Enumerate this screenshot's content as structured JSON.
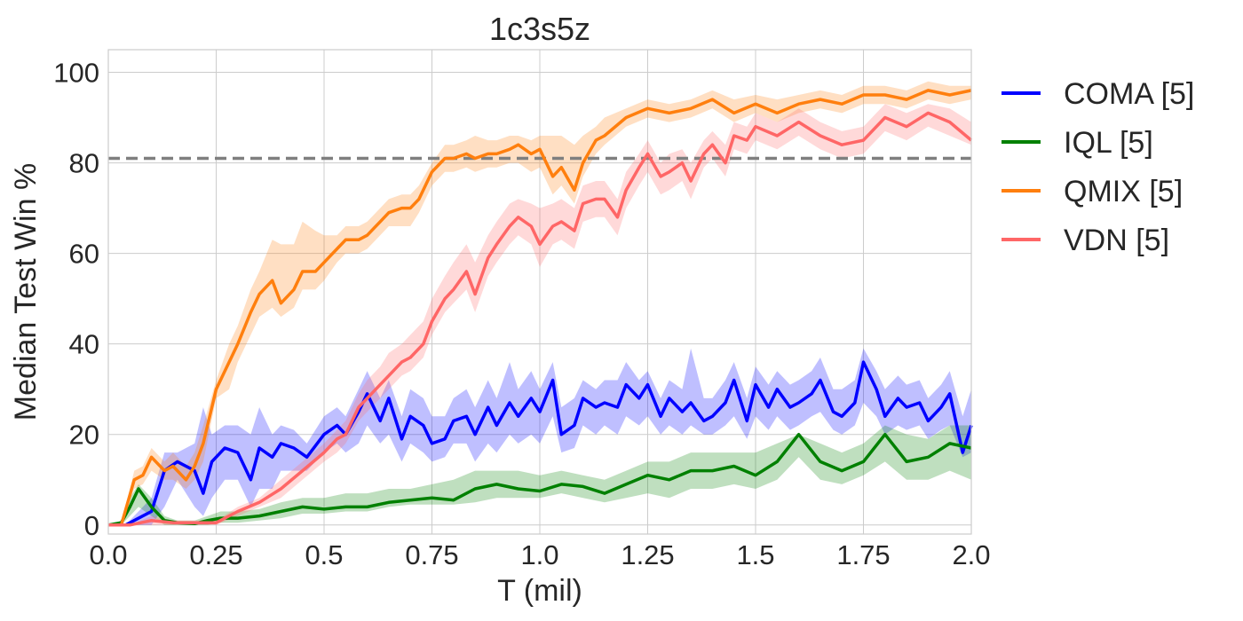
{
  "chart_data": {
    "type": "line",
    "title": "1c3s5z",
    "xlabel": "T (mil)",
    "ylabel": "Median Test Win %",
    "xlim": [
      0,
      2.0
    ],
    "ylim": [
      -2,
      105
    ],
    "xticks": [
      0.0,
      0.25,
      0.5,
      0.75,
      1.0,
      1.25,
      1.5,
      1.75,
      2.0
    ],
    "xtick_labels": [
      "0.0",
      "0.25",
      "0.5",
      "0.75",
      "1.0",
      "1.25",
      "1.5",
      "1.75",
      "2.0"
    ],
    "yticks": [
      0,
      20,
      40,
      60,
      80,
      100
    ],
    "ytick_labels": [
      "0",
      "20",
      "40",
      "60",
      "80",
      "100"
    ],
    "grid": true,
    "legend_position": "outside-right",
    "reference_line": {
      "y": 81,
      "color": "#7f7f7f",
      "style": "dashed"
    },
    "series": [
      {
        "name": "COMA [5]",
        "color": "#0000ff",
        "x": [
          0,
          0.04,
          0.08,
          0.1,
          0.13,
          0.16,
          0.2,
          0.22,
          0.24,
          0.27,
          0.3,
          0.33,
          0.35,
          0.38,
          0.4,
          0.43,
          0.46,
          0.5,
          0.53,
          0.55,
          0.58,
          0.6,
          0.63,
          0.65,
          0.68,
          0.7,
          0.73,
          0.75,
          0.78,
          0.8,
          0.83,
          0.85,
          0.88,
          0.9,
          0.93,
          0.95,
          0.98,
          1.0,
          1.03,
          1.05,
          1.08,
          1.1,
          1.13,
          1.15,
          1.18,
          1.2,
          1.23,
          1.25,
          1.28,
          1.3,
          1.33,
          1.35,
          1.38,
          1.4,
          1.43,
          1.45,
          1.48,
          1.5,
          1.53,
          1.55,
          1.58,
          1.6,
          1.63,
          1.65,
          1.68,
          1.7,
          1.73,
          1.75,
          1.78,
          1.8,
          1.83,
          1.85,
          1.88,
          1.9,
          1.93,
          1.95,
          1.98,
          2.0
        ],
        "y": [
          0,
          0,
          2,
          3,
          12,
          14,
          12,
          7,
          14,
          17,
          16,
          10,
          17,
          15,
          18,
          17,
          15,
          20,
          22,
          20,
          25,
          29,
          23,
          28,
          19,
          24,
          22,
          18,
          19,
          23,
          24,
          20,
          26,
          22,
          27,
          24,
          28,
          25,
          32,
          20,
          22,
          28,
          26,
          27,
          26,
          31,
          28,
          31,
          24,
          28,
          25,
          27,
          23,
          24,
          27,
          32,
          23,
          31,
          26,
          30,
          26,
          27,
          29,
          32,
          25,
          24,
          27,
          36,
          30,
          24,
          28,
          26,
          27,
          23,
          26,
          29,
          16,
          22
        ],
        "lower": [
          0,
          0,
          0,
          0,
          4,
          10,
          4,
          2,
          6,
          10,
          10,
          4,
          8,
          8,
          12,
          12,
          12,
          16,
          18,
          16,
          18,
          22,
          18,
          20,
          14,
          18,
          16,
          14,
          15,
          18,
          18,
          14,
          18,
          16,
          20,
          18,
          20,
          18,
          24,
          16,
          17,
          22,
          20,
          22,
          20,
          24,
          22,
          24,
          20,
          22,
          20,
          22,
          20,
          20,
          22,
          24,
          19,
          24,
          21,
          24,
          21,
          22,
          24,
          25,
          21,
          20,
          22,
          27,
          24,
          20,
          22,
          21,
          22,
          19,
          21,
          22,
          15,
          16
        ],
        "upper": [
          0,
          0,
          4,
          6,
          16,
          16,
          18,
          26,
          20,
          22,
          22,
          20,
          26,
          20,
          22,
          21,
          18,
          24,
          26,
          24,
          30,
          34,
          28,
          32,
          24,
          30,
          28,
          24,
          24,
          28,
          30,
          26,
          32,
          28,
          36,
          30,
          34,
          30,
          36,
          26,
          28,
          32,
          30,
          32,
          32,
          36,
          32,
          34,
          28,
          32,
          30,
          39,
          28,
          28,
          32,
          36,
          28,
          35,
          31,
          34,
          31,
          32,
          34,
          37,
          30,
          30,
          32,
          39,
          34,
          30,
          33,
          31,
          32,
          28,
          31,
          34,
          24,
          30
        ]
      },
      {
        "name": "IQL [5]",
        "color": "#008000",
        "x": [
          0,
          0.03,
          0.05,
          0.07,
          0.1,
          0.13,
          0.16,
          0.2,
          0.23,
          0.26,
          0.3,
          0.35,
          0.4,
          0.45,
          0.5,
          0.55,
          0.6,
          0.65,
          0.7,
          0.75,
          0.8,
          0.85,
          0.9,
          0.95,
          1.0,
          1.05,
          1.1,
          1.15,
          1.2,
          1.25,
          1.3,
          1.35,
          1.4,
          1.45,
          1.5,
          1.55,
          1.6,
          1.65,
          1.7,
          1.75,
          1.8,
          1.85,
          1.9,
          1.95,
          2.0
        ],
        "y": [
          0,
          0.5,
          4,
          8,
          4,
          1,
          0.5,
          0.3,
          1,
          1.5,
          1.5,
          2,
          3,
          4,
          3.5,
          4,
          4,
          5,
          5.5,
          6,
          5.5,
          8,
          9,
          8,
          7.5,
          9,
          8.5,
          7,
          9,
          11,
          10,
          12,
          12,
          13,
          11,
          14,
          20,
          14,
          12,
          14,
          20,
          14,
          15,
          18,
          17
        ],
        "lower": [
          0,
          0,
          2,
          4,
          2,
          0,
          0,
          0,
          0,
          0.5,
          0.5,
          1,
          1.5,
          2.5,
          2.5,
          3,
          3,
          4,
          4.5,
          4.5,
          4.5,
          5,
          6,
          6,
          6,
          7,
          6,
          5,
          6,
          7,
          6,
          8,
          8,
          9,
          8,
          10,
          15,
          10,
          9,
          11,
          14,
          10,
          10,
          12,
          10
        ],
        "upper": [
          0,
          1,
          6,
          9,
          6,
          2,
          1,
          1,
          2,
          3,
          3,
          3.5,
          5,
          6,
          6,
          7,
          7,
          8,
          8,
          9,
          10,
          12,
          12,
          12,
          11,
          12,
          11,
          10,
          12,
          14,
          14,
          16,
          16,
          16,
          16,
          18,
          20,
          18,
          16,
          18,
          22,
          20,
          19,
          22,
          22
        ]
      },
      {
        "name": "QMIX [5]",
        "color": "#ff7f0e",
        "x": [
          0,
          0.03,
          0.06,
          0.08,
          0.1,
          0.13,
          0.15,
          0.18,
          0.2,
          0.22,
          0.25,
          0.28,
          0.3,
          0.33,
          0.35,
          0.38,
          0.4,
          0.43,
          0.45,
          0.48,
          0.5,
          0.53,
          0.55,
          0.58,
          0.6,
          0.63,
          0.65,
          0.68,
          0.7,
          0.72,
          0.75,
          0.78,
          0.8,
          0.83,
          0.85,
          0.88,
          0.9,
          0.93,
          0.95,
          0.98,
          1.0,
          1.03,
          1.05,
          1.08,
          1.1,
          1.13,
          1.15,
          1.2,
          1.25,
          1.3,
          1.35,
          1.4,
          1.45,
          1.5,
          1.55,
          1.6,
          1.65,
          1.7,
          1.75,
          1.8,
          1.85,
          1.9,
          1.95,
          2.0
        ],
        "y": [
          0,
          0,
          10,
          11,
          15,
          12,
          13,
          10,
          13,
          18,
          30,
          36,
          40,
          47,
          51,
          54,
          49,
          52,
          56,
          56,
          58,
          61,
          63,
          63,
          64,
          67,
          69,
          70,
          70,
          72,
          78,
          81,
          81,
          82,
          81,
          82,
          82,
          83,
          84,
          82,
          83,
          77,
          79,
          74,
          80,
          85,
          86,
          90,
          92,
          91,
          92,
          94,
          91,
          93,
          91,
          93,
          94,
          93,
          95,
          95,
          94,
          96,
          95,
          96
        ],
        "lower": [
          0,
          0,
          8,
          9,
          12,
          10,
          10,
          8,
          10,
          14,
          28,
          30,
          36,
          42,
          46,
          48,
          46,
          48,
          52,
          52,
          54,
          58,
          60,
          60,
          61,
          64,
          66,
          66,
          66,
          69,
          75,
          78,
          78,
          79,
          78,
          79,
          79,
          80,
          80,
          78,
          79,
          73,
          75,
          71,
          77,
          82,
          84,
          88,
          90,
          89,
          90,
          92,
          89,
          91,
          89,
          91,
          92,
          91,
          93,
          93,
          92,
          94,
          93,
          94
        ],
        "upper": [
          0,
          0,
          12,
          13,
          17,
          14,
          16,
          13,
          16,
          22,
          32,
          40,
          44,
          52,
          56,
          63,
          62,
          62,
          67,
          65,
          64,
          64,
          66,
          66,
          67,
          70,
          72,
          73,
          73,
          75,
          80,
          84,
          84,
          85,
          86,
          85,
          85,
          86,
          86,
          85,
          86,
          86,
          86,
          84,
          86,
          88,
          90,
          92,
          94,
          93,
          94,
          96,
          94,
          95,
          94,
          95,
          96,
          95,
          97,
          97,
          96,
          98,
          97,
          97
        ]
      },
      {
        "name": "VDN [5]",
        "color": "#ff6666",
        "x": [
          0,
          0.05,
          0.1,
          0.15,
          0.2,
          0.25,
          0.3,
          0.35,
          0.4,
          0.45,
          0.5,
          0.53,
          0.55,
          0.58,
          0.6,
          0.63,
          0.65,
          0.68,
          0.7,
          0.73,
          0.75,
          0.78,
          0.8,
          0.83,
          0.85,
          0.88,
          0.9,
          0.93,
          0.95,
          0.98,
          1.0,
          1.03,
          1.05,
          1.08,
          1.1,
          1.13,
          1.15,
          1.18,
          1.2,
          1.23,
          1.25,
          1.28,
          1.3,
          1.33,
          1.35,
          1.38,
          1.4,
          1.43,
          1.45,
          1.48,
          1.5,
          1.55,
          1.6,
          1.65,
          1.7,
          1.75,
          1.8,
          1.85,
          1.9,
          1.95,
          2.0
        ],
        "y": [
          0,
          0,
          1,
          0.5,
          0.5,
          0.5,
          3,
          5,
          8,
          12,
          16,
          19,
          20,
          26,
          28,
          31,
          33,
          36,
          37,
          40,
          45,
          50,
          52,
          56,
          51,
          59,
          62,
          66,
          68,
          66,
          62,
          66,
          67,
          65,
          71,
          72,
          72,
          68,
          74,
          79,
          82,
          77,
          78,
          80,
          76,
          82,
          84,
          80,
          86,
          85,
          88,
          86,
          89,
          86,
          84,
          85,
          90,
          88,
          91,
          89,
          85
        ],
        "lower": [
          0,
          0,
          0,
          0,
          0,
          0,
          2,
          4,
          6,
          10,
          14,
          16,
          18,
          23,
          25,
          28,
          30,
          33,
          34,
          37,
          42,
          47,
          49,
          52,
          47,
          55,
          58,
          62,
          64,
          62,
          57,
          62,
          63,
          61,
          67,
          68,
          68,
          64,
          70,
          75,
          78,
          73,
          74,
          76,
          72,
          79,
          81,
          77,
          83,
          82,
          85,
          83,
          86,
          83,
          81,
          82,
          87,
          85,
          88,
          86,
          84
        ],
        "upper": [
          0,
          0,
          2,
          1,
          1,
          1,
          4,
          6,
          10,
          14,
          18,
          21,
          23,
          29,
          32,
          35,
          38,
          40,
          42,
          45,
          50,
          55,
          58,
          62,
          58,
          64,
          67,
          71,
          72,
          71,
          70,
          71,
          72,
          70,
          75,
          76,
          76,
          72,
          78,
          82,
          85,
          80,
          82,
          83,
          80,
          85,
          87,
          84,
          89,
          88,
          91,
          89,
          92,
          89,
          87,
          88,
          93,
          91,
          93,
          92,
          89
        ]
      }
    ]
  }
}
